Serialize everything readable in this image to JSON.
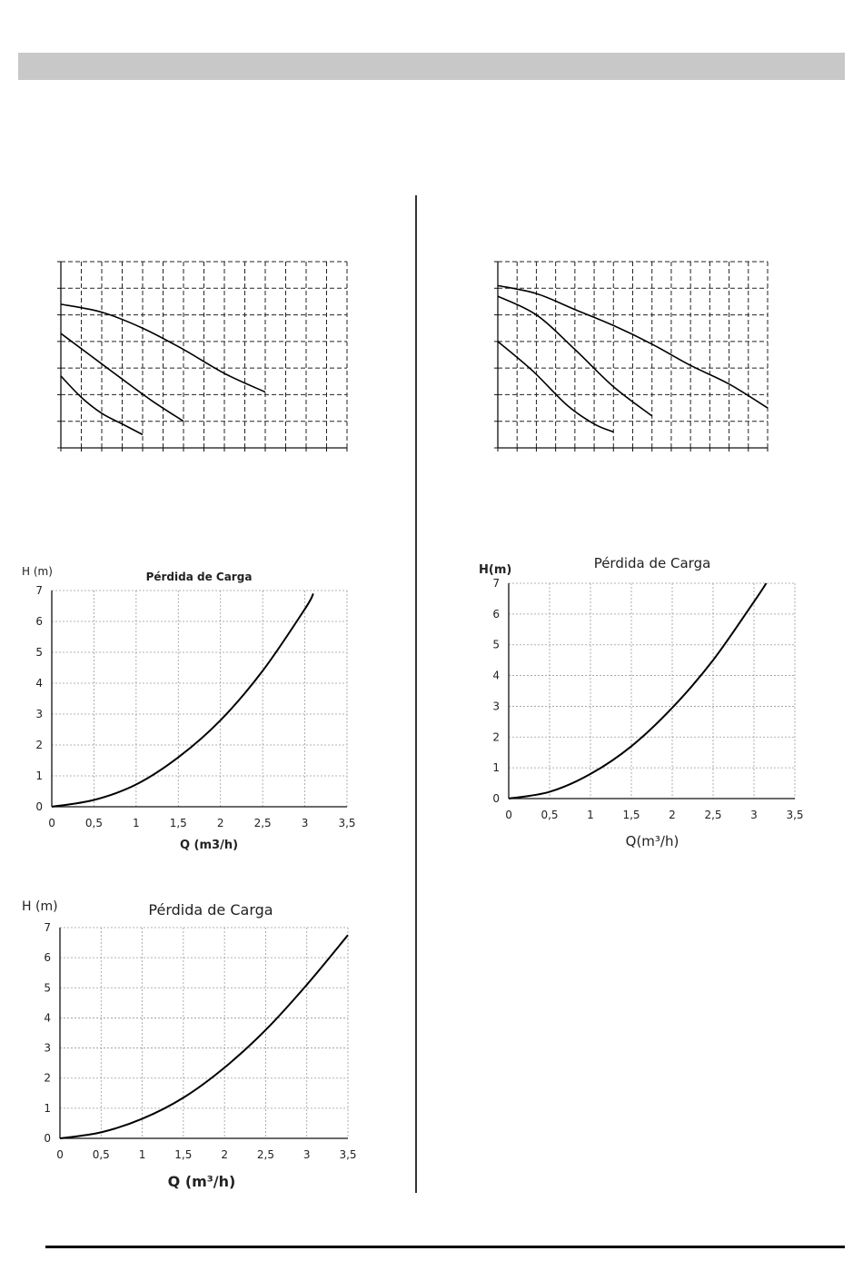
{
  "page": {
    "header_bar_color": "#c8c8c8",
    "divider_color": "#333333",
    "footer_rule_color": "#000000"
  },
  "chart_data": [
    {
      "id": "pump-curve-left",
      "type": "line",
      "grid": true,
      "grid_style": "dashed",
      "title": "",
      "xlabel": "",
      "ylabel": "",
      "xlim": [
        0,
        7
      ],
      "ylim": [
        0,
        7
      ],
      "series": [
        {
          "x": [
            0,
            1,
            2,
            3,
            4,
            5
          ],
          "y": [
            5.4,
            5.1,
            4.5,
            3.7,
            2.8,
            2.1
          ]
        },
        {
          "x": [
            0,
            0.7,
            1.4,
            2.2,
            3
          ],
          "y": [
            4.3,
            3.5,
            2.7,
            1.8,
            1.0
          ]
        },
        {
          "x": [
            0,
            0.5,
            1,
            1.5,
            2
          ],
          "y": [
            2.7,
            1.9,
            1.3,
            0.9,
            0.5
          ]
        }
      ]
    },
    {
      "id": "pump-curve-right",
      "type": "line",
      "grid": true,
      "grid_style": "dashed",
      "title": "",
      "xlabel": "",
      "ylabel": "",
      "xlim": [
        0,
        7
      ],
      "ylim": [
        0,
        7
      ],
      "series": [
        {
          "x": [
            0,
            1,
            2,
            3,
            4,
            5,
            6,
            7
          ],
          "y": [
            6.1,
            5.8,
            5.2,
            4.6,
            3.9,
            3.1,
            2.4,
            1.5
          ]
        },
        {
          "x": [
            0,
            1,
            2,
            3,
            4
          ],
          "y": [
            5.7,
            5.0,
            3.7,
            2.3,
            1.2
          ]
        },
        {
          "x": [
            0,
            0.9,
            1.8,
            2.5,
            3
          ],
          "y": [
            4.0,
            2.9,
            1.6,
            0.9,
            0.6
          ]
        }
      ]
    },
    {
      "id": "loss-chart-1",
      "type": "line",
      "grid": true,
      "grid_style": "dotted",
      "title": "Pérdida de Carga",
      "xlabel": "Q (m3/h)",
      "ylabel": "H (m)",
      "xlim": [
        0,
        3.5
      ],
      "ylim": [
        0,
        7
      ],
      "x_ticks": [
        "0",
        "0,5",
        "1",
        "1,5",
        "2",
        "2,5",
        "3",
        "3,5"
      ],
      "y_ticks": [
        "0",
        "1",
        "2",
        "3",
        "4",
        "5",
        "6",
        "7"
      ],
      "series": [
        {
          "x": [
            0,
            0.5,
            1,
            1.5,
            2,
            2.5,
            3,
            3.1
          ],
          "y": [
            0,
            0.22,
            0.72,
            1.6,
            2.8,
            4.4,
            6.4,
            6.9
          ]
        }
      ]
    },
    {
      "id": "loss-chart-2",
      "type": "line",
      "grid": true,
      "grid_style": "dotted",
      "title": "Pérdida de Carga",
      "xlabel": "Q(m³/h)",
      "ylabel": "H(m)",
      "xlim": [
        0,
        3.5
      ],
      "ylim": [
        0,
        7
      ],
      "x_ticks": [
        "0",
        "0,5",
        "1",
        "1,5",
        "2",
        "2,5",
        "3",
        "3,5"
      ],
      "y_ticks": [
        "0",
        "1",
        "2",
        "3",
        "4",
        "5",
        "6",
        "7"
      ],
      "series": [
        {
          "x": [
            0,
            0.5,
            1,
            1.5,
            2,
            2.5,
            3,
            3.15
          ],
          "y": [
            0,
            0.22,
            0.8,
            1.7,
            2.95,
            4.5,
            6.4,
            7.0
          ]
        }
      ]
    },
    {
      "id": "loss-chart-3",
      "type": "line",
      "grid": true,
      "grid_style": "dotted",
      "title": "Pérdida de Carga",
      "xlabel": "Q (m³/h)",
      "ylabel": "H (m)",
      "xlim": [
        0,
        3.5
      ],
      "ylim": [
        0,
        7
      ],
      "x_ticks": [
        "0",
        "0,5",
        "1",
        "1,5",
        "2",
        "2,5",
        "3",
        "3,5"
      ],
      "y_ticks": [
        "0",
        "1",
        "2",
        "3",
        "4",
        "5",
        "6",
        "7"
      ],
      "series": [
        {
          "x": [
            0,
            0.5,
            1,
            1.5,
            2,
            2.5,
            3,
            3.5
          ],
          "y": [
            0,
            0.2,
            0.65,
            1.35,
            2.35,
            3.6,
            5.1,
            6.75
          ]
        }
      ]
    }
  ]
}
